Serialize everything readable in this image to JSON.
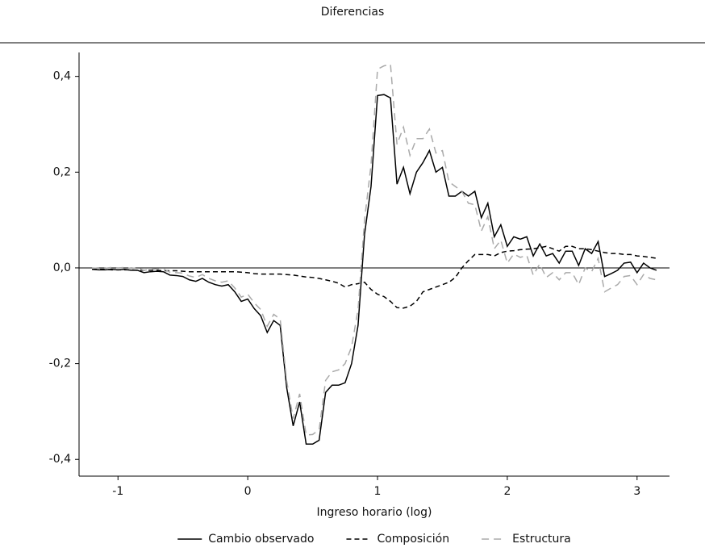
{
  "chart_data": {
    "type": "line",
    "title": "Diferencias",
    "x_label": "Ingreso horario (log)",
    "x": [
      -1.2,
      -1.15,
      -1.1,
      -1.05,
      -1.0,
      -0.95,
      -0.9,
      -0.85,
      -0.8,
      -0.75,
      -0.7,
      -0.65,
      -0.6,
      -0.55,
      -0.5,
      -0.45,
      -0.4,
      -0.35,
      -0.3,
      -0.25,
      -0.2,
      -0.15,
      -0.1,
      -0.05,
      0,
      0.05,
      0.1,
      0.15,
      0.2,
      0.25,
      0.3,
      0.35,
      0.4,
      0.45,
      0.5,
      0.55,
      0.6,
      0.65,
      0.7,
      0.75,
      0.8,
      0.85,
      0.9,
      0.95,
      1.0,
      1.05,
      1.1,
      1.15,
      1.2,
      1.25,
      1.3,
      1.35,
      1.4,
      1.45,
      1.5,
      1.55,
      1.6,
      1.65,
      1.7,
      1.75,
      1.8,
      1.85,
      1.9,
      1.95,
      2.0,
      2.05,
      2.1,
      2.15,
      2.2,
      2.25,
      2.3,
      2.35,
      2.4,
      2.45,
      2.5,
      2.55,
      2.6,
      2.65,
      2.7,
      2.75,
      2.8,
      2.85,
      2.9,
      2.95,
      3.0,
      3.05,
      3.1,
      3.15
    ],
    "series": [
      {
        "name": "Cambio observado",
        "color": "#000000",
        "line_style": "solid",
        "values": [
          -0.003,
          -0.004,
          -0.004,
          -0.003,
          -0.004,
          -0.003,
          -0.005,
          -0.005,
          -0.01,
          -0.008,
          -0.007,
          -0.008,
          -0.015,
          -0.016,
          -0.018,
          -0.025,
          -0.028,
          -0.022,
          -0.03,
          -0.035,
          -0.038,
          -0.035,
          -0.05,
          -0.07,
          -0.065,
          -0.085,
          -0.1,
          -0.135,
          -0.11,
          -0.12,
          -0.25,
          -0.33,
          -0.28,
          -0.368,
          -0.368,
          -0.36,
          -0.26,
          -0.245,
          -0.245,
          -0.24,
          -0.2,
          -0.12,
          0.07,
          0.17,
          0.36,
          0.362,
          0.355,
          0.175,
          0.21,
          0.155,
          0.2,
          0.22,
          0.245,
          0.2,
          0.21,
          0.15,
          0.15,
          0.16,
          0.15,
          0.16,
          0.105,
          0.135,
          0.065,
          0.09,
          0.045,
          0.065,
          0.06,
          0.065,
          0.025,
          0.05,
          0.025,
          0.03,
          0.01,
          0.035,
          0.035,
          0.005,
          0.04,
          0.03,
          0.055,
          -0.018,
          -0.012,
          -0.005,
          0.01,
          0.012,
          -0.01,
          0.01,
          0.0,
          -0.005
        ]
      },
      {
        "name": "Composición",
        "color": "#000000",
        "line_style": "dashed",
        "values": [
          -0.003,
          -0.003,
          -0.003,
          -0.004,
          -0.004,
          -0.004,
          -0.004,
          -0.005,
          -0.005,
          -0.005,
          -0.005,
          -0.006,
          -0.006,
          -0.006,
          -0.007,
          -0.008,
          -0.008,
          -0.008,
          -0.008,
          -0.008,
          -0.008,
          -0.008,
          -0.008,
          -0.009,
          -0.01,
          -0.012,
          -0.013,
          -0.013,
          -0.013,
          -0.013,
          -0.014,
          -0.015,
          -0.017,
          -0.019,
          -0.02,
          -0.022,
          -0.025,
          -0.028,
          -0.032,
          -0.04,
          -0.035,
          -0.033,
          -0.03,
          -0.045,
          -0.055,
          -0.06,
          -0.07,
          -0.083,
          -0.084,
          -0.08,
          -0.07,
          -0.05,
          -0.045,
          -0.04,
          -0.035,
          -0.03,
          -0.02,
          0.0,
          0.015,
          0.028,
          0.028,
          0.028,
          0.025,
          0.032,
          0.035,
          0.036,
          0.038,
          0.039,
          0.04,
          0.042,
          0.045,
          0.04,
          0.035,
          0.045,
          0.045,
          0.04,
          0.04,
          0.038,
          0.035,
          0.032,
          0.03,
          0.03,
          0.028,
          0.028,
          0.025,
          0.024,
          0.022,
          0.02
        ]
      },
      {
        "name": "Estructura",
        "color": "#aaaaaa",
        "line_style": "long-dashed",
        "values": [
          0,
          -0.001,
          -0.001,
          0.001,
          0,
          0.001,
          -0.001,
          0,
          -0.005,
          -0.003,
          -0.002,
          -0.002,
          -0.009,
          -0.01,
          -0.011,
          -0.017,
          -0.02,
          -0.014,
          -0.022,
          -0.027,
          -0.03,
          -0.027,
          -0.042,
          -0.061,
          -0.055,
          -0.073,
          -0.087,
          -0.122,
          -0.097,
          -0.107,
          -0.236,
          -0.315,
          -0.263,
          -0.349,
          -0.348,
          -0.338,
          -0.235,
          -0.217,
          -0.213,
          -0.2,
          -0.165,
          -0.087,
          0.1,
          0.215,
          0.415,
          0.422,
          0.425,
          0.258,
          0.294,
          0.235,
          0.27,
          0.27,
          0.29,
          0.24,
          0.245,
          0.18,
          0.17,
          0.16,
          0.135,
          0.132,
          0.077,
          0.107,
          0.04,
          0.058,
          0.01,
          0.029,
          0.022,
          0.026,
          -0.015,
          0.008,
          -0.02,
          -0.01,
          -0.025,
          -0.01,
          -0.01,
          -0.035,
          0,
          -0.008,
          0.02,
          -0.05,
          -0.042,
          -0.035,
          -0.018,
          -0.016,
          -0.035,
          -0.014,
          -0.022,
          -0.025
        ]
      }
    ],
    "xlim": [
      -1.3,
      3.25
    ],
    "ylim": [
      -0.435,
      0.45
    ],
    "xticks": [
      -1,
      0,
      1,
      2,
      3
    ],
    "yticks": [
      {
        "value": -0.4,
        "label": "-0,4"
      },
      {
        "value": -0.2,
        "label": "-0,2"
      },
      {
        "value": 0,
        "label": "0,0"
      },
      {
        "value": 0.2,
        "label": "0,2"
      },
      {
        "value": 0.4,
        "label": "0,4"
      }
    ],
    "zero_line": true,
    "legend": "bottom"
  }
}
